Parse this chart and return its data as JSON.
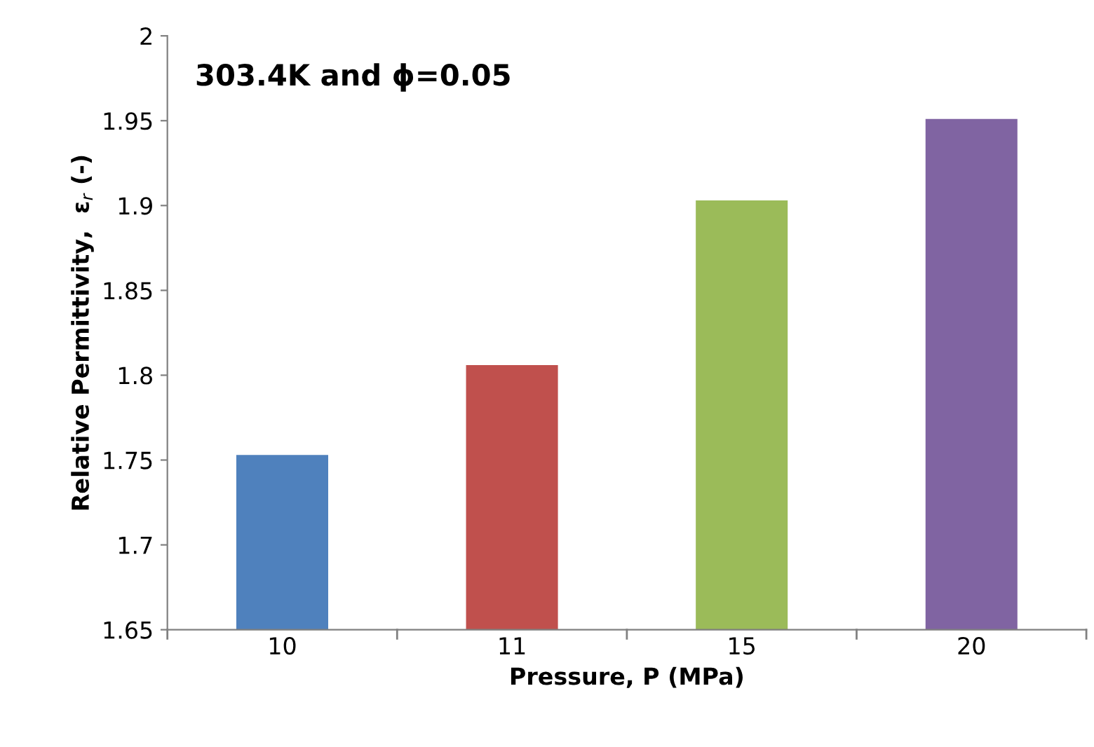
{
  "chart_data": {
    "type": "bar",
    "xlabel": "Pressure, P (MPa)",
    "ylabel": "Relative Permittivity,  ε$_{r}$ (-)",
    "annotations": [
      "303.4K and ϕ=0.05"
    ],
    "categories": [
      "10",
      "11",
      "15",
      "20"
    ],
    "values": [
      1.753,
      1.806,
      1.903,
      1.951
    ],
    "colors": [
      "#4f81bd",
      "#c0504d",
      "#9bbb59",
      "#8064a2"
    ],
    "ylim": [
      1.65,
      2
    ],
    "yticks": [
      1.65,
      1.7,
      1.75,
      1.8,
      1.85,
      1.9,
      1.95,
      2
    ],
    "grid": false,
    "legend": false
  }
}
